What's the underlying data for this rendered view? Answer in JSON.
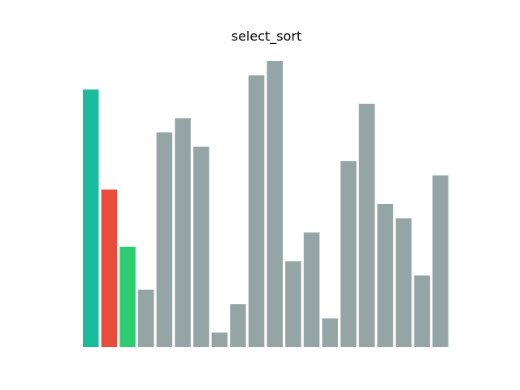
{
  "chart_data": {
    "type": "bar",
    "title": "select_sort",
    "xlabel": "",
    "ylabel": "",
    "grid": false,
    "axes_visible": false,
    "ylim": [
      0,
      100
    ],
    "values": [
      90,
      55,
      35,
      20,
      75,
      80,
      70,
      5,
      15,
      95,
      100,
      30,
      40,
      10,
      65,
      85,
      50,
      45,
      25,
      60
    ],
    "colors": [
      "#1abc9c",
      "#e74c3c",
      "#2ecc71",
      "#95a5a6",
      "#95a5a6",
      "#95a5a6",
      "#95a5a6",
      "#95a5a6",
      "#95a5a6",
      "#95a5a6",
      "#95a5a6",
      "#95a5a6",
      "#95a5a6",
      "#95a5a6",
      "#95a5a6",
      "#95a5a6",
      "#95a5a6",
      "#95a5a6",
      "#95a5a6",
      "#95a5a6"
    ]
  }
}
